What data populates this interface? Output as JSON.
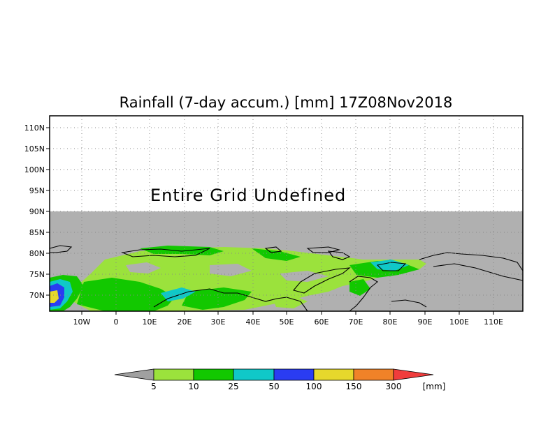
{
  "title": "Rainfall (7-day accum.) [mm] 17Z08Nov2018",
  "message": "Entire Grid Undefined",
  "map": {
    "lon_range": [
      -20,
      120
    ],
    "lat_range": [
      65,
      113
    ],
    "undefined_above_lat": 90,
    "undefined_color": "#ffffff",
    "ocean_color": "#b0b0b0",
    "lat_ticks": [
      "110N",
      "105N",
      "100N",
      "95N",
      "90N",
      "85N",
      "80N",
      "75N",
      "70N"
    ],
    "lon_ticks": [
      "10W",
      "0",
      "10E",
      "20E",
      "30E",
      "40E",
      "50E",
      "60E",
      "70E",
      "80E",
      "90E",
      "100E",
      "110E"
    ]
  },
  "colorbar": {
    "unit": "[mm]",
    "labels": [
      "5",
      "10",
      "25",
      "50",
      "100",
      "150",
      "300"
    ],
    "colors": [
      "#a0a0a0",
      "#9be23c",
      "#12c800",
      "#10c8c8",
      "#2a3cf2",
      "#e6d82c",
      "#f08228",
      "#f03c3c"
    ]
  }
}
